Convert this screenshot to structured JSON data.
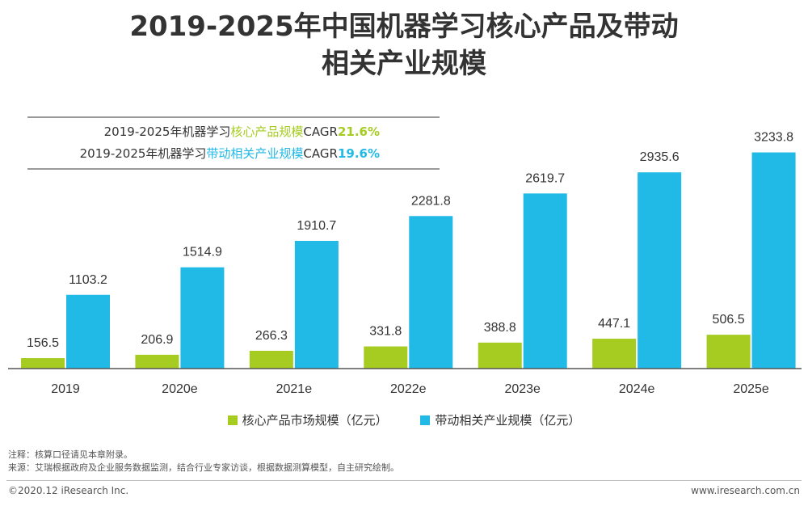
{
  "title_line1": "2019-2025年中国机器学习核心产品及带动",
  "title_line2": "相关产业规模",
  "cagr": {
    "line1": {
      "prefix": "2019-2025年机器学习",
      "highlight": "核心产品规模",
      "label": "CAGR",
      "value": "21.6%"
    },
    "line2": {
      "prefix": "2019-2025年机器学习",
      "highlight": "带动相关产业规模",
      "label": "CAGR",
      "value": "19.6%"
    }
  },
  "colors": {
    "core": "#a6cc22",
    "related": "#21b9e6",
    "axis": "#555555"
  },
  "chart_data": {
    "type": "bar",
    "categories": [
      "2019",
      "2020e",
      "2021e",
      "2022e",
      "2023e",
      "2024e",
      "2025e"
    ],
    "series": [
      {
        "name": "核心产品市场规模（亿元）",
        "values": [
          156.5,
          206.9,
          266.3,
          331.8,
          388.8,
          447.1,
          506.5
        ]
      },
      {
        "name": "带动相关产业规模（亿元）",
        "values": [
          1103.2,
          1514.9,
          1910.7,
          2281.8,
          2619.7,
          2935.6,
          3233.8
        ]
      }
    ],
    "value_labels": [
      [
        "156.5",
        "206.9",
        "266.3",
        "331.8",
        "388.8",
        "447.1",
        "506.5"
      ],
      [
        "1103.2",
        "1514.9",
        "1910.7",
        "2281.8",
        "2619.7",
        "2935.6",
        "3233.8"
      ]
    ],
    "ylim": [
      0,
      3700
    ],
    "grid": false,
    "legend": "bottom"
  },
  "notes": {
    "note": "注释：核算口径请见本章附录。",
    "source": "来源：艾瑞根据政府及企业服务数据监测，结合行业专家访谈，根据数据测算模型，自主研究绘制。"
  },
  "footer": {
    "left": "©2020.12 iResearch Inc.",
    "right": "www.iresearch.com.cn"
  }
}
